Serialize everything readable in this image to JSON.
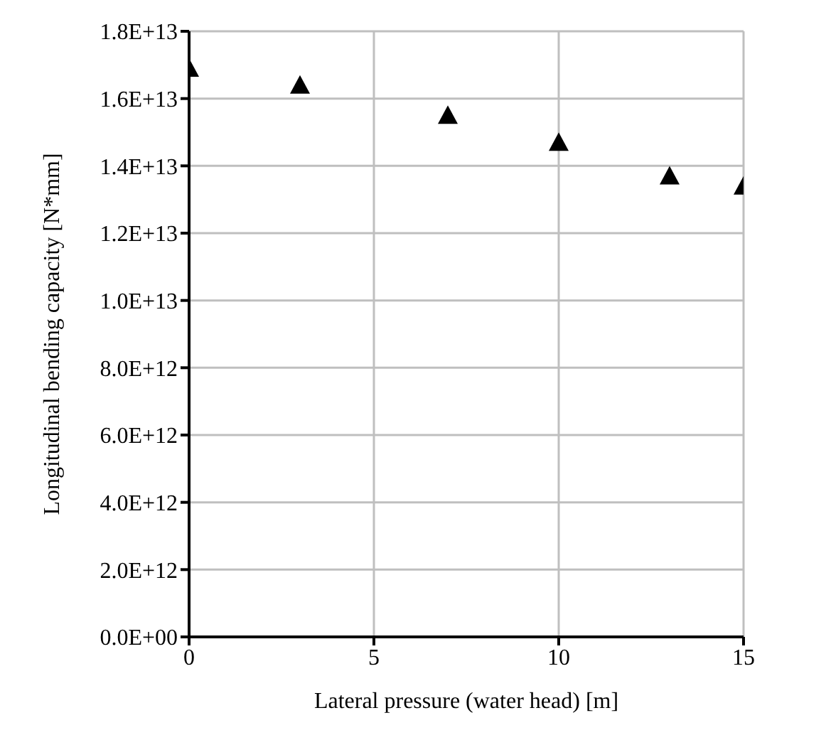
{
  "chart_data": {
    "type": "scatter",
    "xlabel": "Lateral pressure (water head) [m]",
    "ylabel": "Longitudinal bending capacity  [N*mm]",
    "x": [
      0,
      3,
      7,
      10,
      13,
      15
    ],
    "series": [
      {
        "color": "#000000",
        "values": [
          16900000000000,
          16400000000000,
          15500000000000,
          14700000000000,
          13700000000000,
          13400000000000
        ]
      }
    ],
    "marker": "triangle",
    "grid": true,
    "legend": false,
    "xlim": [
      0,
      15
    ],
    "xticks": [
      0,
      5,
      10,
      15
    ],
    "ylim": [
      0,
      18000000000000
    ],
    "yticks": [
      {
        "value": 0,
        "label": "0.0E+00"
      },
      {
        "value": 2000000000000,
        "label": "2.0E+12"
      },
      {
        "value": 4000000000000,
        "label": "4.0E+12"
      },
      {
        "value": 6000000000000,
        "label": "6.0E+12"
      },
      {
        "value": 8000000000000,
        "label": "8.0E+12"
      },
      {
        "value": 10000000000000,
        "label": "1.0E+13"
      },
      {
        "value": 12000000000000,
        "label": "1.2E+13"
      },
      {
        "value": 14000000000000,
        "label": "1.4E+13"
      },
      {
        "value": 16000000000000,
        "label": "1.6E+13"
      },
      {
        "value": 18000000000000,
        "label": "1.8E+13"
      }
    ]
  }
}
